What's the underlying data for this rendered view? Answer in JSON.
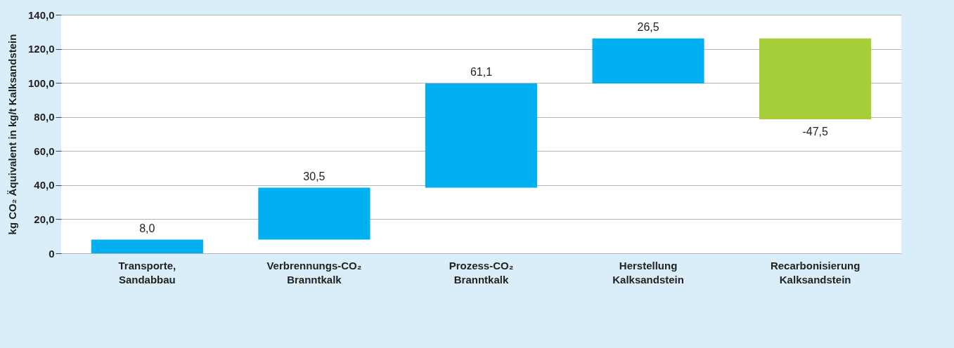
{
  "chart_data": {
    "type": "bar",
    "ylabel": "kg CO₂ Äquivalent in kg/t Kalksandstein",
    "categories": [
      "Transporte,\nSandabbau",
      "Verbrennungs-CO₂\nBranntkalk",
      "Prozess-CO₂\nBranntkalk",
      "Herstellung\nKalksandstein",
      "Recarbonisierung\nKalksandstein"
    ],
    "values": [
      8.0,
      30.5,
      61.1,
      26.5,
      -47.5
    ],
    "base": [
      0,
      8.0,
      38.5,
      99.6,
      126.1
    ],
    "colors": [
      "#00b0f0",
      "#00b0f0",
      "#00b0f0",
      "#00b0f0",
      "#a6ce39"
    ],
    "value_labels": [
      "8,0",
      "30,5",
      "61,1",
      "26,5",
      "-47,5"
    ],
    "ylim": [
      0,
      140
    ],
    "yticks": [
      0,
      {
        "value": 20,
        "label": "20,0"
      },
      {
        "value": 40,
        "label": "40,0"
      },
      {
        "value": 60,
        "label": "60,0"
      },
      {
        "value": 80,
        "label": "80,0"
      },
      {
        "value": 100,
        "label": "100,0"
      },
      {
        "value": 120,
        "label": "120,0"
      },
      {
        "value": 140,
        "label": "140,0"
      }
    ],
    "grid": "y"
  }
}
